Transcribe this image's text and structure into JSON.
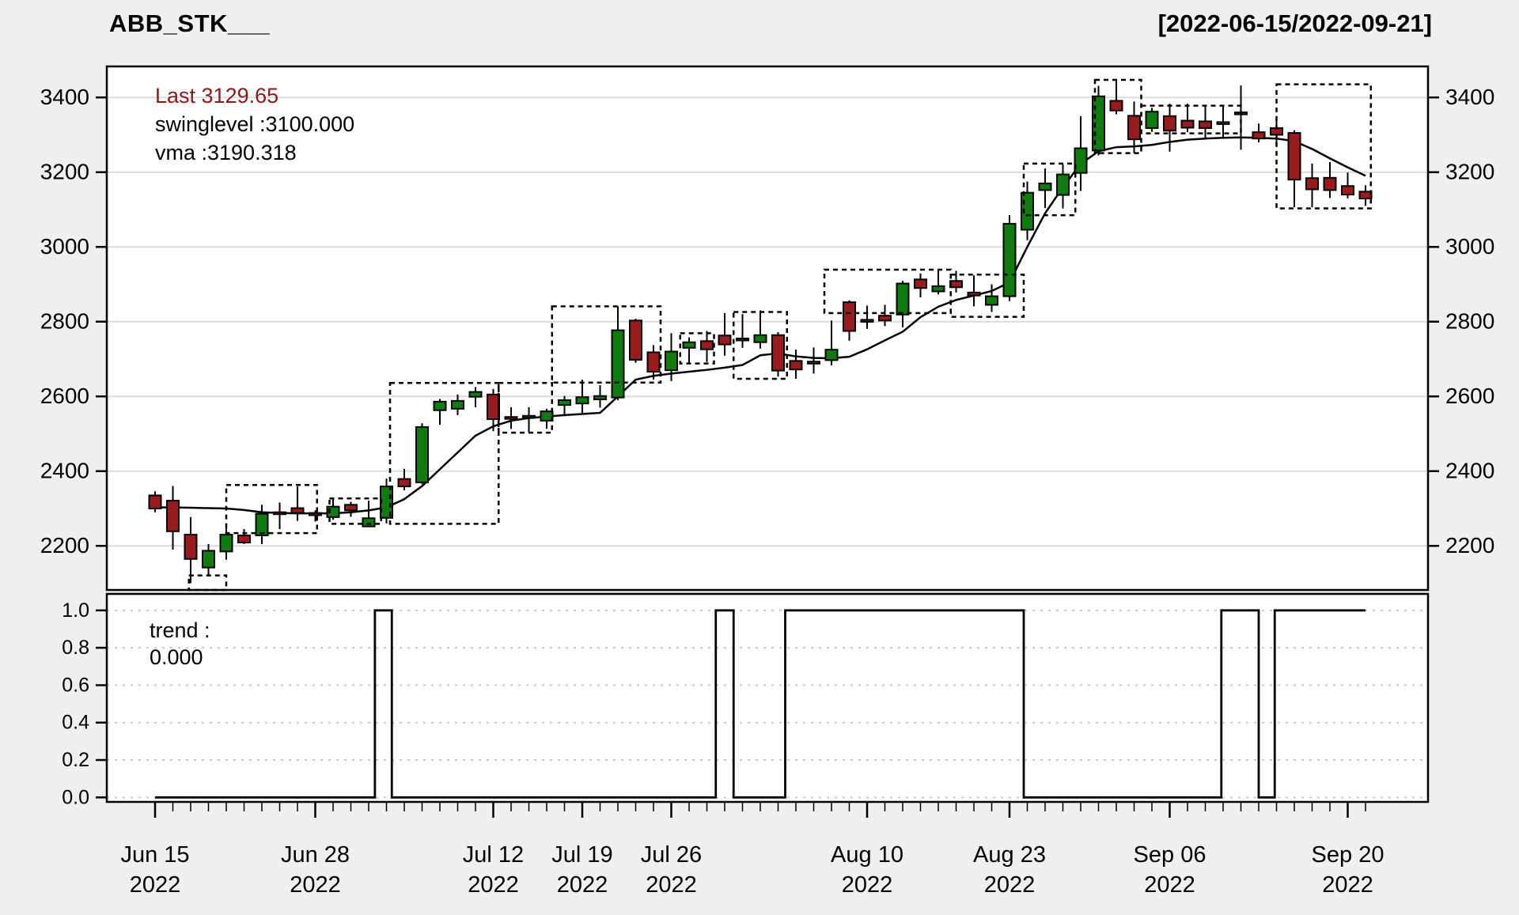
{
  "header": {
    "title": "ABB_STK___",
    "date_range": "[2022-06-15/2022-09-21]"
  },
  "legend": {
    "last_label": "Last 3129.65",
    "swinglevel_label": "swinglevel :3100.000",
    "vma_label": "vma :3190.318"
  },
  "trend_legend": {
    "line1": "trend :",
    "line2": "0.000"
  },
  "colors": {
    "background": "#EFEFEF",
    "panel_bg": "#FFFFFF",
    "up_candle": "#107C10",
    "down_candle": "#9A1B1B",
    "last_text": "#8B1A1A",
    "grid_main": "#DBDBDB",
    "grid_trend": "#C9C9C9",
    "axis": "#000000"
  },
  "chart_data": [
    {
      "type": "candlestick",
      "title": "ABB_STK___",
      "ylabel": "",
      "ylim": [
        2082,
        3483
      ],
      "yticks": [
        2200,
        2400,
        2600,
        2800,
        3000,
        3200,
        3400
      ],
      "grid": true,
      "legend_position": "top-left",
      "last_price": 3129.65,
      "swinglevel": 3100.0,
      "vma_last": 3190.318,
      "dates": [
        "Jun 15",
        "Jun 16",
        "Jun 17",
        "Jun 20",
        "Jun 21",
        "Jun 22",
        "Jun 23",
        "Jun 24",
        "Jun 27",
        "Jun 28",
        "Jun 29",
        "Jun 30",
        "Jul 01",
        "Jul 04",
        "Jul 05",
        "Jul 06",
        "Jul 07",
        "Jul 08",
        "Jul 11",
        "Jul 12",
        "Jul 13",
        "Jul 14",
        "Jul 15",
        "Jul 18",
        "Jul 19",
        "Jul 20",
        "Jul 21",
        "Jul 22",
        "Jul 25",
        "Jul 26",
        "Jul 27",
        "Jul 28",
        "Jul 29",
        "Aug 01",
        "Aug 02",
        "Aug 03",
        "Aug 04",
        "Aug 05",
        "Aug 08",
        "Aug 09",
        "Aug 10",
        "Aug 11",
        "Aug 12",
        "Aug 16",
        "Aug 17",
        "Aug 18",
        "Aug 19",
        "Aug 22",
        "Aug 23",
        "Aug 24",
        "Aug 25",
        "Aug 26",
        "Aug 29",
        "Aug 30",
        "Sep 01",
        "Sep 02",
        "Sep 05",
        "Sep 06",
        "Sep 07",
        "Sep 08",
        "Sep 09",
        "Sep 12",
        "Sep 13",
        "Sep 14",
        "Sep 15",
        "Sep 16",
        "Sep 19",
        "Sep 20",
        "Sep 21"
      ],
      "ohlc": [
        [
          2335,
          2346,
          2290,
          2300
        ],
        [
          2321,
          2360,
          2190,
          2239
        ],
        [
          2230,
          2277,
          2100,
          2165
        ],
        [
          2142,
          2205,
          2120,
          2187
        ],
        [
          2185,
          2256,
          2163,
          2230
        ],
        [
          2228,
          2245,
          2205,
          2209
        ],
        [
          2228,
          2310,
          2205,
          2286
        ],
        [
          2290,
          2316,
          2245,
          2288
        ],
        [
          2301,
          2359,
          2267,
          2288
        ],
        [
          2288,
          2295,
          2265,
          2282
        ],
        [
          2277,
          2327,
          2270,
          2305
        ],
        [
          2310,
          2318,
          2278,
          2295
        ],
        [
          2252,
          2321,
          2250,
          2274
        ],
        [
          2275,
          2380,
          2260,
          2359
        ],
        [
          2379,
          2406,
          2349,
          2359
        ],
        [
          2370,
          2528,
          2365,
          2518
        ],
        [
          2563,
          2593,
          2524,
          2586
        ],
        [
          2567,
          2605,
          2550,
          2588
        ],
        [
          2599,
          2625,
          2571,
          2612
        ],
        [
          2605,
          2620,
          2507,
          2539
        ],
        [
          2545,
          2571,
          2513,
          2540
        ],
        [
          2545,
          2571,
          2503,
          2548
        ],
        [
          2535,
          2567,
          2513,
          2560
        ],
        [
          2577,
          2601,
          2547,
          2590
        ],
        [
          2581,
          2645,
          2555,
          2598
        ],
        [
          2592,
          2630,
          2570,
          2601
        ],
        [
          2597,
          2841,
          2590,
          2777
        ],
        [
          2803,
          2808,
          2690,
          2698
        ],
        [
          2718,
          2737,
          2645,
          2666
        ],
        [
          2670,
          2769,
          2641,
          2720
        ],
        [
          2730,
          2758,
          2688,
          2745
        ],
        [
          2748,
          2775,
          2692,
          2726
        ],
        [
          2763,
          2823,
          2709,
          2739
        ],
        [
          2755,
          2820,
          2730,
          2750
        ],
        [
          2745,
          2830,
          2728,
          2764
        ],
        [
          2764,
          2772,
          2653,
          2669
        ],
        [
          2695,
          2725,
          2647,
          2672
        ],
        [
          2690,
          2731,
          2661,
          2693
        ],
        [
          2697,
          2803,
          2683,
          2725
        ],
        [
          2852,
          2857,
          2749,
          2775
        ],
        [
          2800,
          2843,
          2781,
          2805
        ],
        [
          2816,
          2845,
          2788,
          2803
        ],
        [
          2819,
          2909,
          2785,
          2902
        ],
        [
          2913,
          2929,
          2865,
          2890
        ],
        [
          2881,
          2939,
          2873,
          2895
        ],
        [
          2909,
          2936,
          2878,
          2892
        ],
        [
          2878,
          2924,
          2841,
          2870
        ],
        [
          2845,
          2900,
          2826,
          2868
        ],
        [
          2868,
          3085,
          2855,
          3062
        ],
        [
          3046,
          3175,
          3018,
          3145
        ],
        [
          3152,
          3210,
          3104,
          3170
        ],
        [
          3139,
          3221,
          3103,
          3194
        ],
        [
          3198,
          3350,
          3150,
          3264
        ],
        [
          3258,
          3431,
          3245,
          3403
        ],
        [
          3391,
          3445,
          3355,
          3365
        ],
        [
          3351,
          3389,
          3251,
          3288
        ],
        [
          3318,
          3372,
          3308,
          3362
        ],
        [
          3350,
          3383,
          3255,
          3311
        ],
        [
          3338,
          3383,
          3307,
          3319
        ],
        [
          3336,
          3380,
          3291,
          3318
        ],
        [
          3330,
          3376,
          3290,
          3334
        ],
        [
          3360,
          3432,
          3260,
          3355
        ],
        [
          3307,
          3330,
          3280,
          3290
        ],
        [
          3318,
          3350,
          3269,
          3300
        ],
        [
          3305,
          3312,
          3106,
          3180
        ],
        [
          3184,
          3223,
          3106,
          3154
        ],
        [
          3185,
          3227,
          3131,
          3152
        ],
        [
          3163,
          3199,
          3130,
          3140
        ],
        [
          3148,
          3165,
          3110,
          3129.65
        ]
      ],
      "vma": [
        2303,
        2303,
        2302,
        2301,
        2300,
        2296,
        2290,
        2288,
        2287,
        2287,
        2287,
        2290,
        2295,
        2303,
        2325,
        2360,
        2405,
        2450,
        2495,
        2520,
        2535,
        2542,
        2546,
        2550,
        2553,
        2556,
        2600,
        2645,
        2655,
        2661,
        2666,
        2671,
        2677,
        2684,
        2710,
        2715,
        2707,
        2703,
        2702,
        2706,
        2726,
        2750,
        2773,
        2812,
        2840,
        2858,
        2870,
        2882,
        2905,
        3000,
        3090,
        3160,
        3222,
        3256,
        3267,
        3269,
        3273,
        3281,
        3287,
        3290,
        3292,
        3293,
        3292,
        3290,
        3283,
        3262,
        3237,
        3213,
        3190.3
      ],
      "swing_boxes": [
        {
          "i1": 2.9,
          "i2": 5.0,
          "v1": 2068,
          "v2": 2121
        },
        {
          "i1": 5.0,
          "i2": 10.1,
          "v1": 2234,
          "v2": 2363
        },
        {
          "i1": 10.8,
          "i2": 13.7,
          "v1": 2259,
          "v2": 2327
        },
        {
          "i1": 14.2,
          "i2": 20.3,
          "v1": 2259,
          "v2": 2636
        },
        {
          "i1": 20.3,
          "i2": 23.3,
          "v1": 2503,
          "v2": 2636
        },
        {
          "i1": 23.3,
          "i2": 29.4,
          "v1": 2637,
          "v2": 2841
        },
        {
          "i1": 30.5,
          "i2": 32.4,
          "v1": 2688,
          "v2": 2769
        },
        {
          "i1": 33.5,
          "i2": 36.5,
          "v1": 2647,
          "v2": 2826
        },
        {
          "i1": 38.6,
          "i2": 45.7,
          "v1": 2823,
          "v2": 2939
        },
        {
          "i1": 45.7,
          "i2": 49.8,
          "v1": 2813,
          "v2": 2926
        },
        {
          "i1": 49.8,
          "i2": 52.7,
          "v1": 3085,
          "v2": 3223
        },
        {
          "i1": 53.8,
          "i2": 56.4,
          "v1": 3251,
          "v2": 3447
        },
        {
          "i1": 56.4,
          "i2": 62.0,
          "v1": 3304,
          "v2": 3378
        },
        {
          "i1": 64.0,
          "i2": 69.3,
          "v1": 3103,
          "v2": 3435
        }
      ],
      "xticks": [
        {
          "label": "Jun 15",
          "year": "2022",
          "index": 1
        },
        {
          "label": "Jun 28",
          "year": "2022",
          "index": 10
        },
        {
          "label": "Jul 12",
          "year": "2022",
          "index": 20
        },
        {
          "label": "Jul 19",
          "year": "2022",
          "index": 25
        },
        {
          "label": "Jul 26",
          "year": "2022",
          "index": 30
        },
        {
          "label": "Aug 10",
          "year": "2022",
          "index": 41
        },
        {
          "label": "Aug 23",
          "year": "2022",
          "index": 49
        },
        {
          "label": "Sep 06",
          "year": "2022",
          "index": 58
        },
        {
          "label": "Sep 20",
          "year": "2022",
          "index": 68
        }
      ]
    },
    {
      "type": "step-line",
      "name": "trend",
      "current_value": 0.0,
      "ylim": [
        -0.024,
        1.088
      ],
      "yticks": [
        0.0,
        0.2,
        0.4,
        0.6,
        0.8,
        1.0
      ],
      "ytick_labels": [
        "0.0",
        "0.2",
        "0.4",
        "0.6",
        "0.8",
        "1.0"
      ],
      "grid": "dotted",
      "segments": [
        [
          1,
          5.1,
          0
        ],
        [
          5.1,
          13.35,
          1
        ],
        [
          13.35,
          14.3,
          0
        ],
        [
          14.3,
          32.5,
          1
        ],
        [
          32.5,
          33.5,
          0
        ],
        [
          33.5,
          36.4,
          1
        ],
        [
          36.4,
          49.8,
          0
        ],
        [
          49.8,
          60.9,
          1
        ],
        [
          60.9,
          63.0,
          0
        ],
        [
          63.0,
          63.9,
          1
        ],
        [
          63.9,
          69,
          0
        ]
      ]
    }
  ]
}
